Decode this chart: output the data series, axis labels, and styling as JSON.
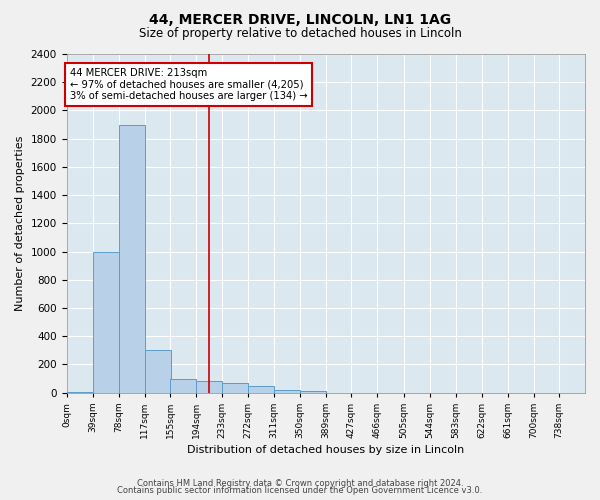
{
  "title1": "44, MERCER DRIVE, LINCOLN, LN1 1AG",
  "title2": "Size of property relative to detached houses in Lincoln",
  "xlabel": "Distribution of detached houses by size in Lincoln",
  "ylabel": "Number of detached properties",
  "bar_color": "#b8d0e8",
  "bar_edge_color": "#5a9ec8",
  "bg_color": "#dce8f0",
  "grid_color": "#ffffff",
  "annotation_box_color": "#cc0000",
  "annotation_text": "44 MERCER DRIVE: 213sqm\n← 97% of detached houses are smaller (4,205)\n3% of semi-detached houses are larger (134) →",
  "property_line_x": 213,
  "footer1": "Contains HM Land Registry data © Crown copyright and database right 2024.",
  "footer2": "Contains public sector information licensed under the Open Government Licence v3.0.",
  "bin_edges": [
    0,
    39,
    78,
    117,
    155,
    194,
    233,
    272,
    311,
    350,
    389,
    427,
    466,
    505,
    544,
    583,
    622,
    661,
    700,
    738,
    777
  ],
  "bar_heights": [
    5,
    1000,
    1900,
    300,
    100,
    85,
    65,
    45,
    20,
    10,
    0,
    0,
    0,
    0,
    0,
    0,
    0,
    0,
    0,
    0
  ],
  "ylim": [
    0,
    2400
  ],
  "yticks": [
    0,
    200,
    400,
    600,
    800,
    1000,
    1200,
    1400,
    1600,
    1800,
    2000,
    2200,
    2400
  ],
  "fig_width": 6.0,
  "fig_height": 5.0,
  "dpi": 100
}
